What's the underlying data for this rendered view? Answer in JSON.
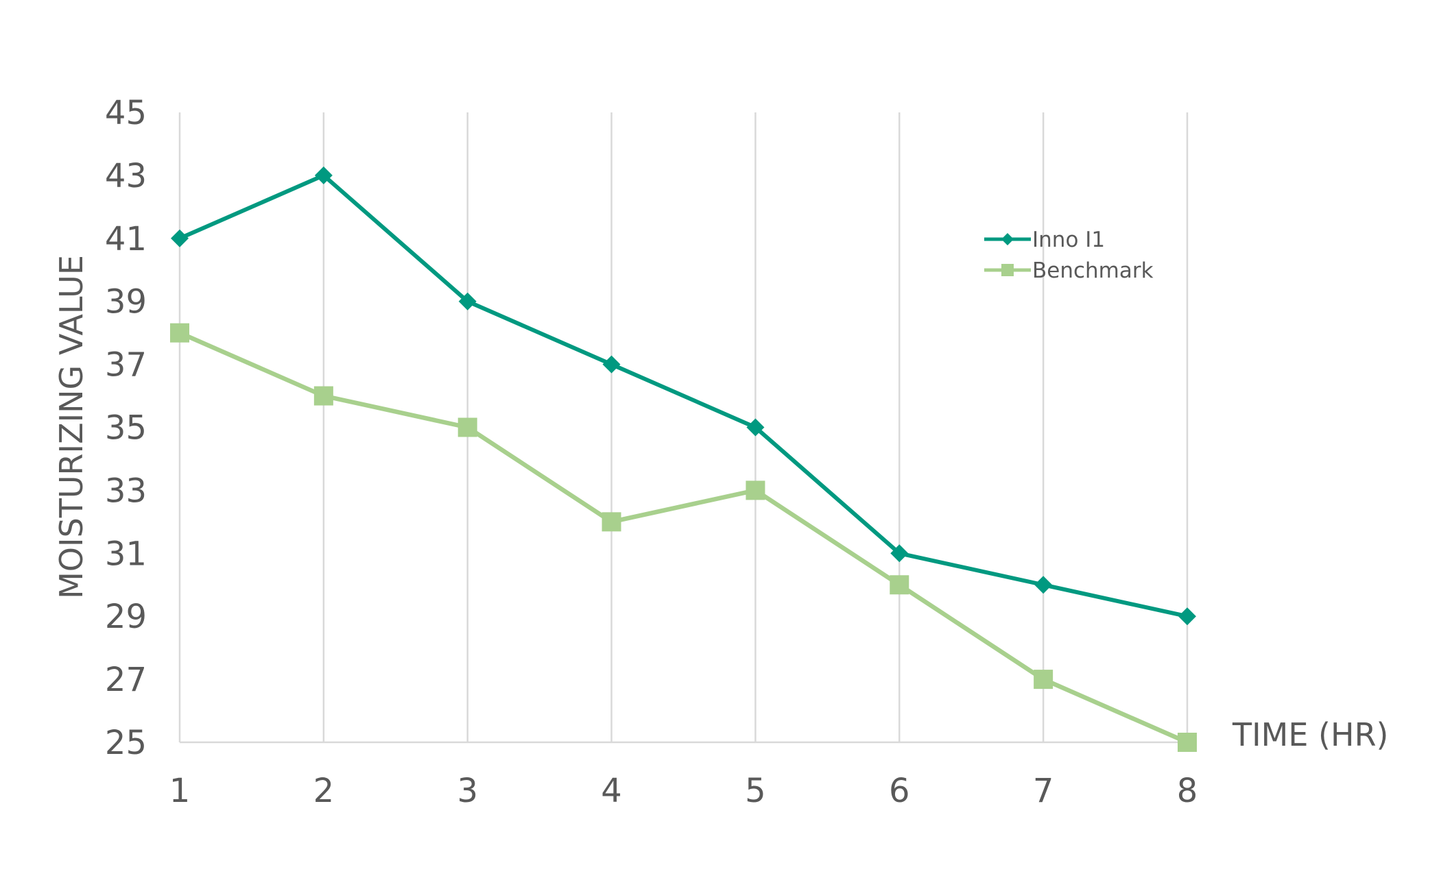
{
  "chart_data": {
    "type": "line",
    "title": "",
    "xlabel": "TIME (HR)",
    "ylabel": "MOISTURIZING VALUE",
    "categories": [
      "1",
      "2",
      "3",
      "4",
      "5",
      "6",
      "7",
      "8"
    ],
    "ylim": [
      25,
      45
    ],
    "yticks": [
      "25",
      "27",
      "29",
      "31",
      "33",
      "35",
      "37",
      "39",
      "41",
      "43",
      "45"
    ],
    "grid": "vertical",
    "legend_position": "top-right",
    "series": [
      {
        "name": "Inno I1",
        "marker": "diamond",
        "color": "#009980",
        "values": [
          41,
          43,
          39,
          37,
          35,
          31,
          30,
          29
        ]
      },
      {
        "name": "Benchmark",
        "marker": "square",
        "color": "#a8d08d",
        "values": [
          38,
          36,
          35,
          32,
          33,
          30,
          27,
          25
        ]
      }
    ]
  }
}
